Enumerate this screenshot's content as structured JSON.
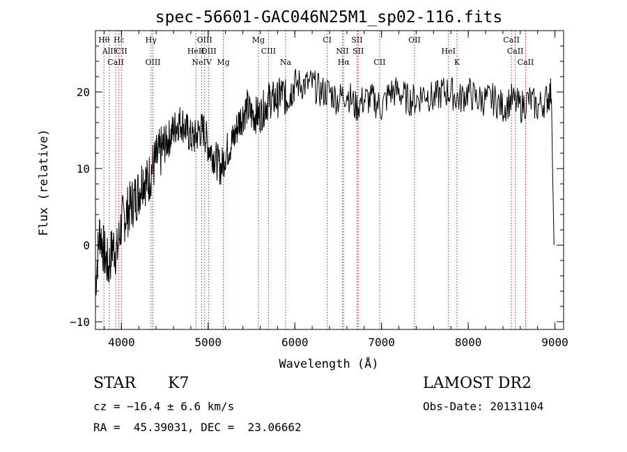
{
  "chart_data": {
    "type": "line",
    "title": "spec-56601-GAC046N25M1_sp02-116.fits",
    "xlabel": "Wavelength (Å)",
    "ylabel": "Flux (relative)",
    "xlim": [
      3700,
      9100
    ],
    "ylim": [
      -11,
      28
    ],
    "xticks": [
      4000,
      5000,
      6000,
      7000,
      8000,
      9000
    ],
    "yticks": [
      -10,
      0,
      10,
      20
    ],
    "grid": false,
    "line_color": "#000000",
    "marker_color": "#b22222",
    "series": [
      {
        "x": [
          3700,
          3750,
          3800,
          3850,
          3900,
          3950,
          4000,
          4050,
          4100,
          4150,
          4200,
          4250,
          4300,
          4350,
          4400,
          4450,
          4500,
          4550,
          4600,
          4650,
          4700,
          4750,
          4800,
          4850,
          4900,
          4950,
          5000,
          5050,
          5100,
          5150,
          5200,
          5250,
          5300,
          5350,
          5400,
          5450,
          5500,
          5550,
          5600,
          5650,
          5700,
          5750,
          5800,
          5850,
          5900,
          5950,
          6000,
          6100,
          6200,
          6300,
          6400,
          6500,
          6600,
          6700,
          6800,
          6900,
          7000,
          7100,
          7200,
          7300,
          7400,
          7500,
          7600,
          7700,
          7800,
          7900,
          8000,
          8100,
          8200,
          8300,
          8400,
          8500,
          8600,
          8700,
          8800,
          8900,
          8960,
          8990
        ],
        "y": [
          -5,
          2,
          -1,
          -3,
          0,
          -1,
          3,
          4,
          5,
          6,
          7,
          9,
          8,
          10,
          11,
          12,
          13,
          14,
          15,
          16,
          16,
          15,
          14,
          14,
          15,
          15,
          13,
          12,
          11,
          10,
          12,
          13,
          14,
          16,
          17,
          18,
          17,
          17,
          17,
          18,
          19,
          19,
          19,
          20,
          19,
          20,
          21,
          21,
          21,
          20,
          20,
          19,
          20,
          18,
          19,
          19,
          18,
          20,
          20,
          19,
          19,
          20,
          19,
          20,
          20,
          19,
          20,
          19,
          19,
          19,
          18,
          19,
          18,
          19,
          18,
          19,
          20,
          0
        ]
      }
    ],
    "lines": [
      {
        "label": "Hθ",
        "x": 3798
      },
      {
        "label": "AlII",
        "x": 3860
      },
      {
        "label": "CaII",
        "x": 3934
      },
      {
        "label": "Hε",
        "x": 3970
      },
      {
        "label": "CII",
        "x": 4000
      },
      {
        "label": "OIII",
        "x": 4363
      },
      {
        "label": "Hγ",
        "x": 4341
      },
      {
        "label": "HeII",
        "x": 4859
      },
      {
        "label": "NeIV",
        "x": 4926
      },
      {
        "label": "OIII",
        "x": 4959
      },
      {
        "label": "OIII",
        "x": 5007
      },
      {
        "label": "Mg",
        "x": 5175
      },
      {
        "label": "Mg",
        "x": 5580
      },
      {
        "label": "CIII",
        "x": 5696
      },
      {
        "label": "Na",
        "x": 5893
      },
      {
        "label": "CI",
        "x": 6373
      },
      {
        "label": "NII",
        "x": 6548
      },
      {
        "label": "Hα",
        "x": 6563
      },
      {
        "label": "SII",
        "x": 6717
      },
      {
        "label": "SII",
        "x": 6731
      },
      {
        "label": "CII",
        "x": 6978
      },
      {
        "label": "OII",
        "x": 7380
      },
      {
        "label": "HeI",
        "x": 7772
      },
      {
        "label": "K",
        "x": 7870
      },
      {
        "label": "CaII",
        "x": 8498
      },
      {
        "label": "CaII",
        "x": 8542
      },
      {
        "label": "CaII",
        "x": 8662
      }
    ]
  },
  "info": {
    "class_label": "STAR",
    "subclass": "K7",
    "cz": "cz = −16.4 ± 6.6 km/s",
    "coords": "RA =  45.39031, DEC =  23.06662",
    "survey": "LAMOST DR2",
    "obs_date": "Obs-Date: 20131104"
  }
}
